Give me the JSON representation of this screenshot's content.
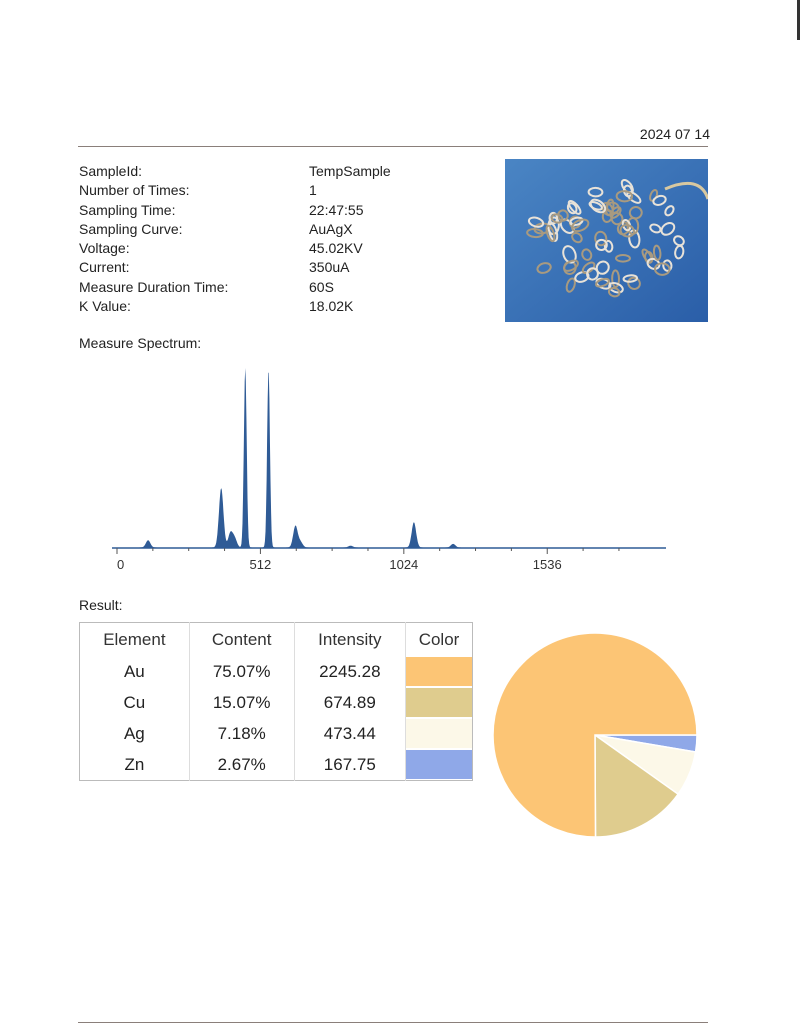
{
  "header": {
    "date": "2024 07 14"
  },
  "info": [
    {
      "label": "SampleId:",
      "value": "TempSample"
    },
    {
      "label": "Number of Times:",
      "value": "1"
    },
    {
      "label": "Sampling Time:",
      "value": "22:47:55"
    },
    {
      "label": "Sampling Curve:",
      "value": "AuAgX"
    },
    {
      "label": "Voltage:",
      "value": "45.02KV"
    },
    {
      "label": "Current:",
      "value": "350uA"
    },
    {
      "label": "Measure Duration Time:",
      "value": "60S"
    },
    {
      "label": "K Value:",
      "value": "18.02K"
    }
  ],
  "photo": {
    "description_icon": "sample-photo-chain-rings"
  },
  "spectrum": {
    "title": "Measure Spectrum:",
    "chart_data": {
      "type": "area",
      "xlim": [
        0,
        1960
      ],
      "x_ticks": [
        "0",
        "512",
        "1024",
        "1536"
      ],
      "color": "#2f5b96",
      "peaks": [
        {
          "x": 111,
          "y": 4
        },
        {
          "x": 372,
          "y": 33
        },
        {
          "x": 405,
          "y": 8
        },
        {
          "x": 420,
          "y": 5
        },
        {
          "x": 458,
          "y": 100
        },
        {
          "x": 541,
          "y": 99
        },
        {
          "x": 637,
          "y": 12
        },
        {
          "x": 655,
          "y": 3
        },
        {
          "x": 834,
          "y": 1
        },
        {
          "x": 1060,
          "y": 14
        },
        {
          "x": 1200,
          "y": 2
        }
      ]
    }
  },
  "result": {
    "title": "Result:",
    "columns": [
      "Element",
      "Content",
      "Intensity",
      "Color"
    ],
    "rows": [
      {
        "element": "Au",
        "content": "75.07%",
        "intensity": "2245.28",
        "color": "#fcc575"
      },
      {
        "element": "Cu",
        "content": "15.07%",
        "intensity": "674.89",
        "color": "#dfcc8e"
      },
      {
        "element": "Ag",
        "content": "7.18%",
        "intensity": "473.44",
        "color": "#fcf8e8"
      },
      {
        "element": "Zn",
        "content": "2.67%",
        "intensity": "167.75",
        "color": "#8fa8e8"
      }
    ],
    "chart_data": {
      "type": "pie",
      "categories": [
        "Au",
        "Cu",
        "Ag",
        "Zn"
      ],
      "values": [
        75.07,
        15.07,
        7.18,
        2.67
      ],
      "colors": [
        "#fcc575",
        "#dfcc8e",
        "#fcf8e8",
        "#8fa8e8"
      ]
    }
  }
}
